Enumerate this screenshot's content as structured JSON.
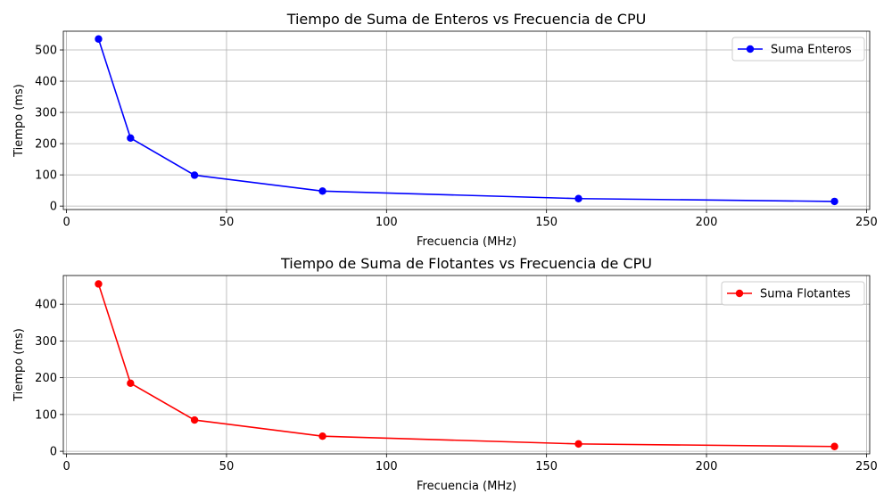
{
  "chart_data": [
    {
      "type": "line",
      "title": "Tiempo de Suma de Enteros vs Frecuencia de CPU",
      "xlabel": "Frecuencia (MHz)",
      "ylabel": "Tiempo (ms)",
      "xlim": [
        -1,
        251
      ],
      "ylim": [
        -11,
        560
      ],
      "xticks": [
        0,
        50,
        100,
        150,
        200,
        250
      ],
      "yticks": [
        0,
        100,
        200,
        300,
        400,
        500
      ],
      "grid": true,
      "legend_position": "top-right",
      "series": [
        {
          "name": "Suma Enteros",
          "color": "#0000ff",
          "marker": "circle",
          "x": [
            10,
            20,
            40,
            80,
            160,
            240
          ],
          "y": [
            535,
            218,
            99,
            48,
            24,
            15
          ]
        }
      ]
    },
    {
      "type": "line",
      "title": "Tiempo de Suma de Flotantes vs Frecuencia de CPU",
      "xlabel": "Frecuencia (MHz)",
      "ylabel": "Tiempo (ms)",
      "xlim": [
        -1,
        251
      ],
      "ylim": [
        -7,
        478
      ],
      "xticks": [
        0,
        50,
        100,
        150,
        200,
        250
      ],
      "yticks": [
        0,
        100,
        200,
        300,
        400
      ],
      "grid": true,
      "legend_position": "top-right",
      "series": [
        {
          "name": "Suma Flotantes",
          "color": "#ff0000",
          "marker": "circle",
          "x": [
            10,
            20,
            40,
            80,
            160,
            240
          ],
          "y": [
            455,
            185,
            85,
            41,
            20,
            13
          ]
        }
      ]
    }
  ]
}
